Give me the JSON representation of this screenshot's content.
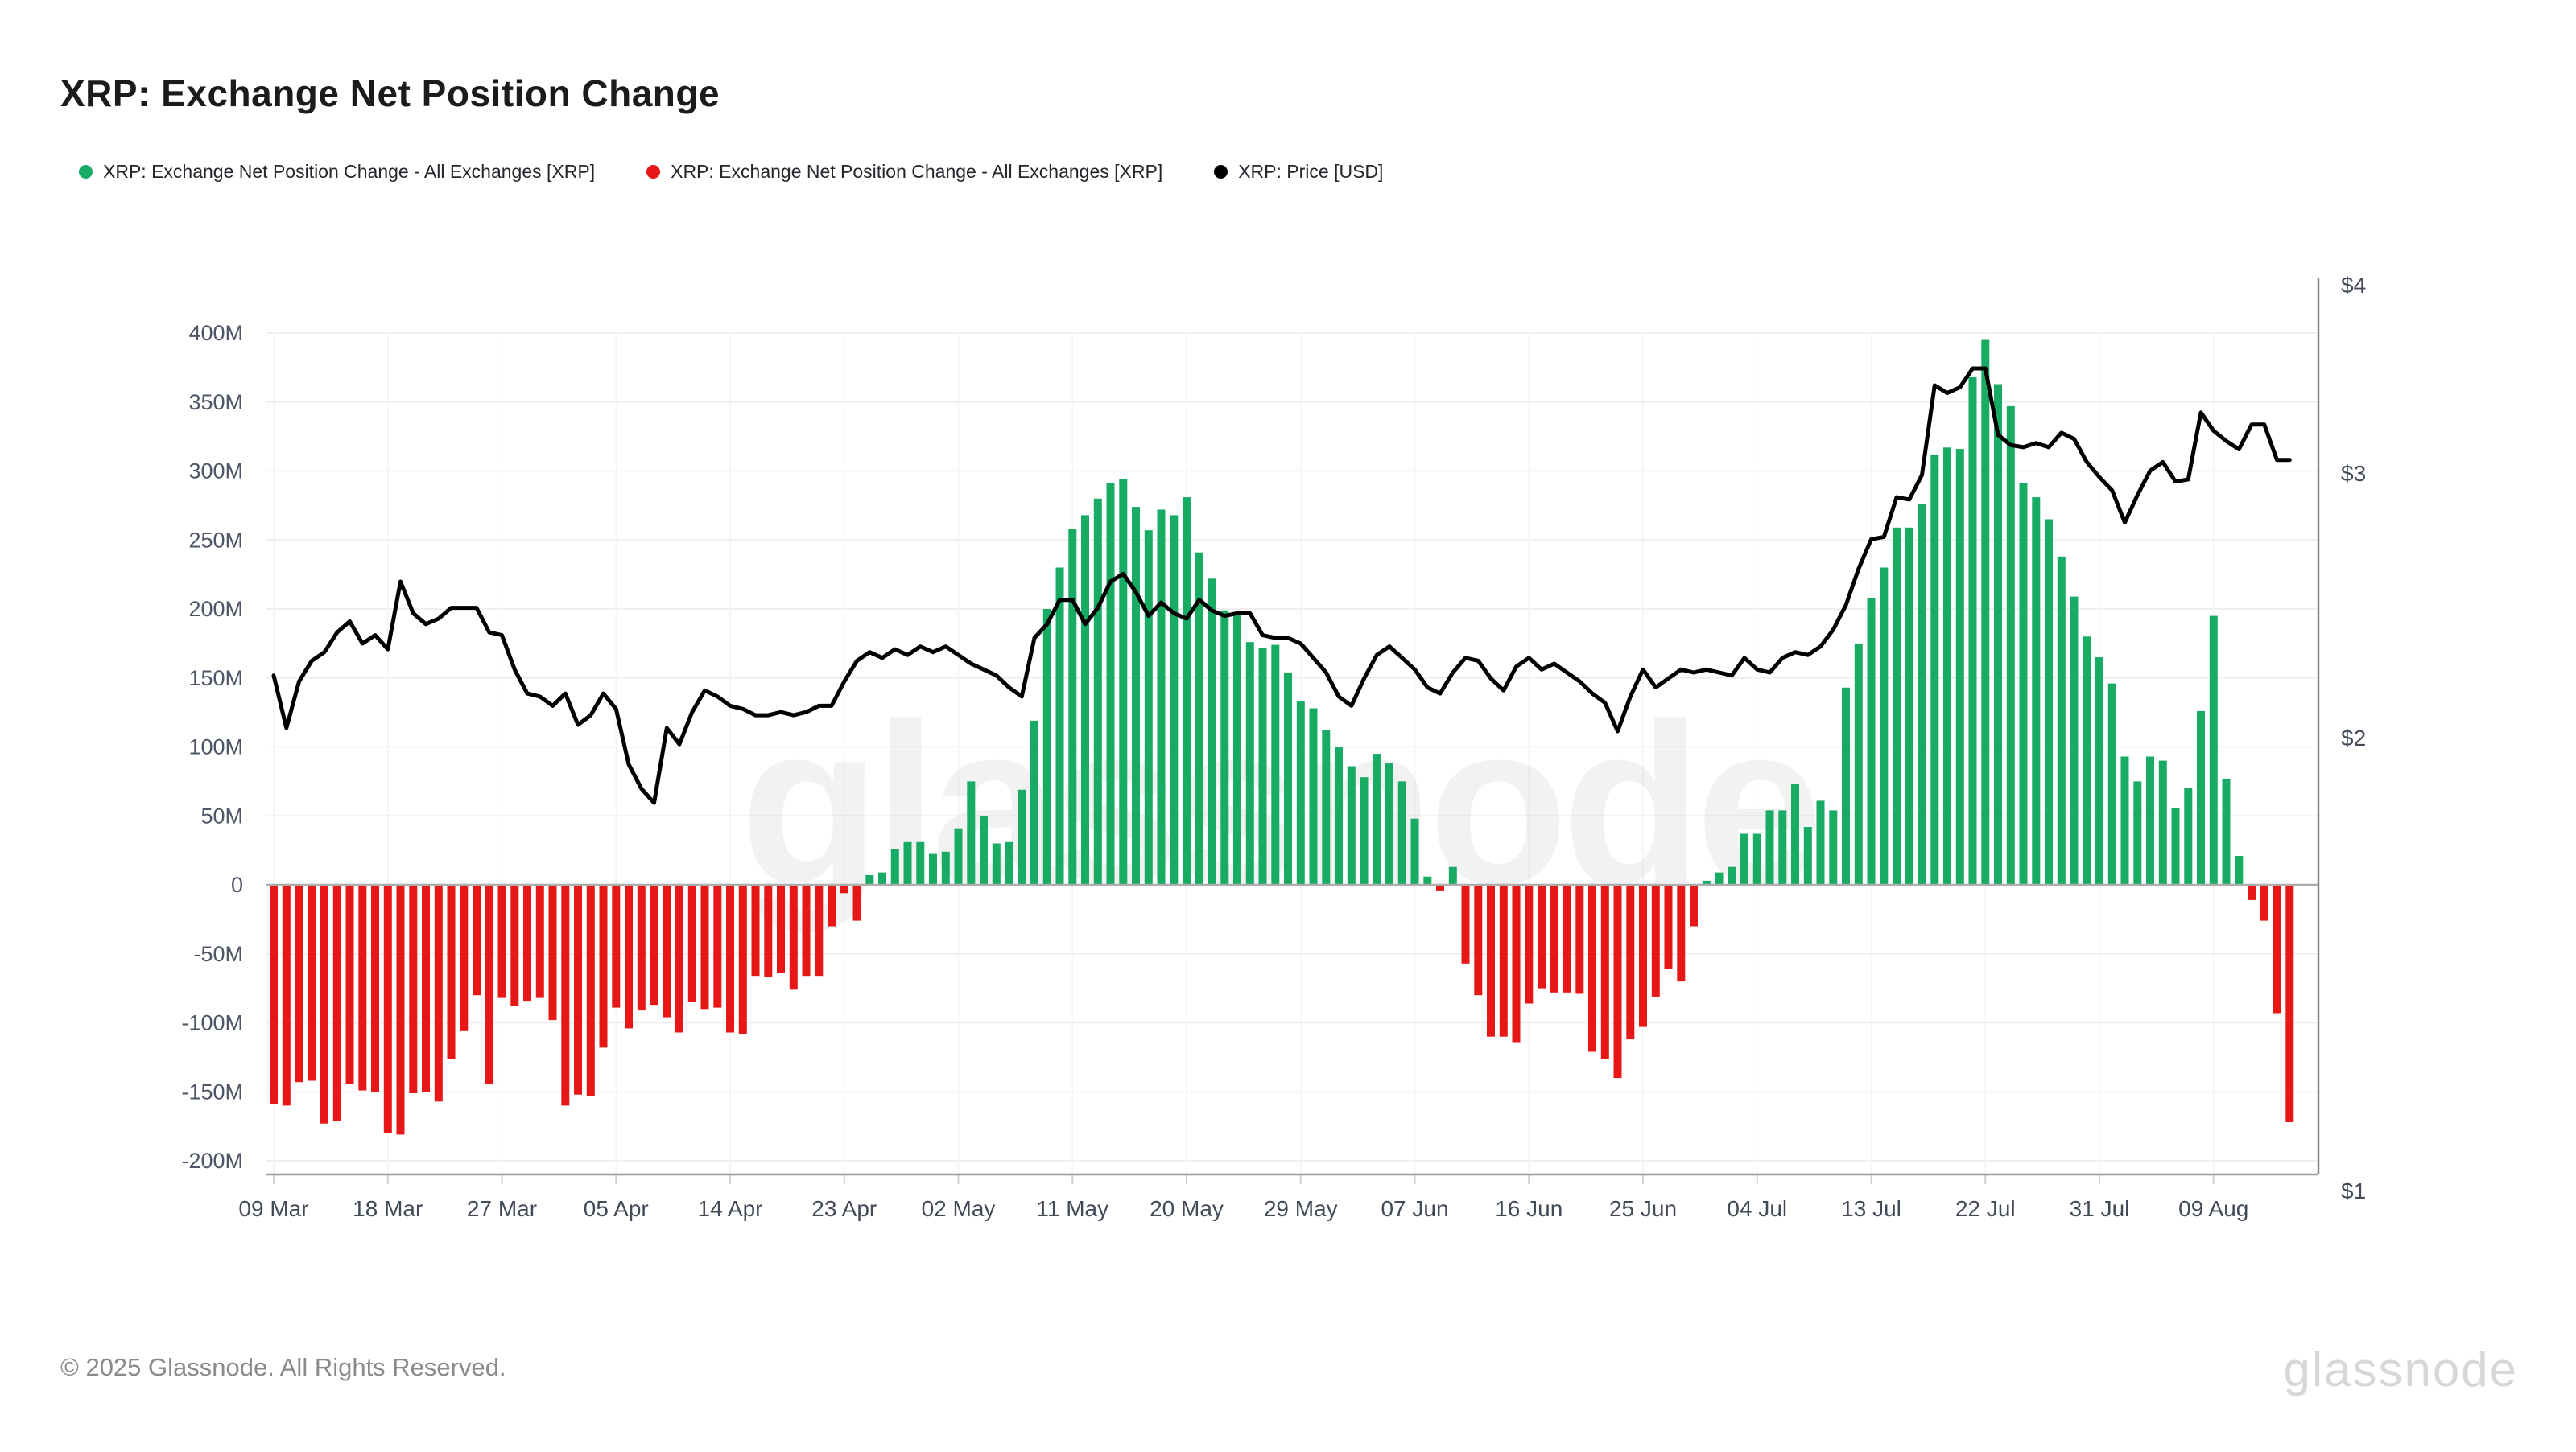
{
  "title": "XRP: Exchange Net Position Change",
  "legend": [
    {
      "label": "XRP: Exchange Net Position Change - All Exchanges [XRP]",
      "color": "#17ab64"
    },
    {
      "label": "XRP: Exchange Net Position Change - All Exchanges [XRP]",
      "color": "#e81717"
    },
    {
      "label": "XRP: Price [USD]",
      "color": "#000000"
    }
  ],
  "watermark": "glassnode",
  "footer": {
    "copyright": "© 2025 Glassnode. All Rights Reserved.",
    "logo": "glassnode"
  },
  "chart_data": {
    "type": "bar",
    "title": "XRP: Exchange Net Position Change",
    "bar_series_name": "XRP: Exchange Net Position Change - All Exchanges [XRP]",
    "line_series_name": "XRP: Price [USD]",
    "left_axis": {
      "unit": "XRP (millions)",
      "tick_labels": [
        "400M",
        "350M",
        "300M",
        "250M",
        "200M",
        "150M",
        "100M",
        "50M",
        "0",
        "-50M",
        "-100M",
        "-150M",
        "-200M"
      ],
      "tick_values": [
        400,
        350,
        300,
        250,
        200,
        150,
        100,
        50,
        0,
        -50,
        -100,
        -150,
        -200
      ],
      "range": [
        -200,
        400
      ],
      "grid": true
    },
    "right_axis": {
      "unit": "USD",
      "scale": "log",
      "tick_labels": [
        "$4",
        "$3",
        "$2",
        "$1"
      ],
      "tick_values": [
        4,
        3,
        2,
        1
      ],
      "range": [
        1,
        4
      ]
    },
    "x_ticks": [
      "09 Mar",
      "18 Mar",
      "27 Mar",
      "05 Apr",
      "14 Apr",
      "23 Apr",
      "02 May",
      "11 May",
      "20 May",
      "29 May",
      "07 Jun",
      "16 Jun",
      "25 Jun",
      "04 Jul",
      "13 Jul",
      "22 Jul",
      "31 Jul",
      "09 Aug"
    ],
    "x_tick_every_days": 9,
    "legend_position": "top-left",
    "colors": {
      "positive": "#17ab64",
      "negative": "#e81717",
      "price": "#000000"
    },
    "dates": [
      "09 Mar",
      "10 Mar",
      "11 Mar",
      "12 Mar",
      "13 Mar",
      "14 Mar",
      "15 Mar",
      "16 Mar",
      "17 Mar",
      "18 Mar",
      "19 Mar",
      "20 Mar",
      "21 Mar",
      "22 Mar",
      "23 Mar",
      "24 Mar",
      "25 Mar",
      "26 Mar",
      "27 Mar",
      "28 Mar",
      "29 Mar",
      "30 Mar",
      "31 Mar",
      "01 Apr",
      "02 Apr",
      "03 Apr",
      "04 Apr",
      "05 Apr",
      "06 Apr",
      "07 Apr",
      "08 Apr",
      "09 Apr",
      "10 Apr",
      "11 Apr",
      "12 Apr",
      "13 Apr",
      "14 Apr",
      "15 Apr",
      "16 Apr",
      "17 Apr",
      "18 Apr",
      "19 Apr",
      "20 Apr",
      "21 Apr",
      "22 Apr",
      "23 Apr",
      "24 Apr",
      "25 Apr",
      "26 Apr",
      "27 Apr",
      "28 Apr",
      "29 Apr",
      "30 Apr",
      "01 May",
      "02 May",
      "03 May",
      "04 May",
      "05 May",
      "06 May",
      "07 May",
      "08 May",
      "09 May",
      "10 May",
      "11 May",
      "12 May",
      "13 May",
      "14 May",
      "15 May",
      "16 May",
      "17 May",
      "18 May",
      "19 May",
      "20 May",
      "21 May",
      "22 May",
      "23 May",
      "24 May",
      "25 May",
      "26 May",
      "27 May",
      "28 May",
      "29 May",
      "30 May",
      "31 May",
      "01 Jun",
      "02 Jun",
      "03 Jun",
      "04 Jun",
      "05 Jun",
      "06 Jun",
      "07 Jun",
      "08 Jun",
      "09 Jun",
      "10 Jun",
      "11 Jun",
      "12 Jun",
      "13 Jun",
      "14 Jun",
      "15 Jun",
      "16 Jun",
      "17 Jun",
      "18 Jun",
      "19 Jun",
      "20 Jun",
      "21 Jun",
      "22 Jun",
      "23 Jun",
      "24 Jun",
      "25 Jun",
      "26 Jun",
      "27 Jun",
      "28 Jun",
      "29 Jun",
      "30 Jun",
      "01 Jul",
      "02 Jul",
      "03 Jul",
      "04 Jul",
      "05 Jul",
      "06 Jul",
      "07 Jul",
      "08 Jul",
      "09 Jul",
      "10 Jul",
      "11 Jul",
      "12 Jul",
      "13 Jul",
      "14 Jul",
      "15 Jul",
      "16 Jul",
      "17 Jul",
      "18 Jul",
      "19 Jul",
      "20 Jul",
      "21 Jul",
      "22 Jul",
      "23 Jul",
      "24 Jul",
      "25 Jul",
      "26 Jul",
      "27 Jul",
      "28 Jul",
      "29 Jul",
      "30 Jul",
      "31 Jul",
      "01 Aug",
      "02 Aug",
      "03 Aug",
      "04 Aug",
      "05 Aug",
      "06 Aug",
      "07 Aug",
      "08 Aug",
      "09 Aug",
      "10 Aug",
      "11 Aug",
      "12 Aug",
      "13 Aug",
      "14 Aug",
      "15 Aug"
    ],
    "npc_millions": [
      -159,
      -160,
      -143,
      -142,
      -173,
      -171,
      -144,
      -149,
      -150,
      -180,
      -181,
      -151,
      -150,
      -157,
      -126,
      -106,
      -80,
      -144,
      -82,
      -88,
      -84,
      -82,
      -98,
      -160,
      -152,
      -153,
      -118,
      -89,
      -104,
      -91,
      -87,
      -96,
      -107,
      -85,
      -90,
      -89,
      -107,
      -108,
      -66,
      -67,
      -64,
      -76,
      -66,
      -66,
      -30,
      -6,
      -26,
      7,
      9,
      26,
      31,
      31,
      23,
      24,
      41,
      75,
      50,
      30,
      31,
      69,
      119,
      200,
      230,
      258,
      268,
      280,
      291,
      294,
      274,
      257,
      272,
      268,
      281,
      241,
      222,
      199,
      196,
      176,
      172,
      174,
      154,
      133,
      128,
      112,
      100,
      86,
      78,
      95,
      88,
      75,
      48,
      6,
      -4,
      13,
      -57,
      -80,
      -110,
      -110,
      -114,
      -86,
      -75,
      -78,
      -78,
      -79,
      -121,
      -126,
      -140,
      -112,
      -103,
      -81,
      -61,
      -70,
      -30,
      3,
      9,
      13,
      37,
      37,
      54,
      54,
      73,
      42,
      61,
      54,
      143,
      175,
      208,
      230,
      259,
      259,
      276,
      312,
      317,
      316,
      368,
      395,
      363,
      347,
      291,
      281,
      265,
      238,
      209,
      180,
      165,
      146,
      93,
      75,
      93,
      90,
      56,
      70,
      126,
      195,
      77,
      21,
      -11,
      -26,
      -93,
      -172
    ],
    "price_usd": [
      2.2,
      2.03,
      2.18,
      2.25,
      2.28,
      2.35,
      2.39,
      2.31,
      2.34,
      2.29,
      2.54,
      2.42,
      2.38,
      2.4,
      2.44,
      2.44,
      2.44,
      2.35,
      2.34,
      2.22,
      2.14,
      2.13,
      2.1,
      2.14,
      2.04,
      2.07,
      2.14,
      2.09,
      1.92,
      1.85,
      1.81,
      2.03,
      1.98,
      2.08,
      2.15,
      2.13,
      2.1,
      2.09,
      2.07,
      2.07,
      2.08,
      2.07,
      2.08,
      2.1,
      2.1,
      2.18,
      2.25,
      2.28,
      2.26,
      2.29,
      2.27,
      2.3,
      2.28,
      2.3,
      2.27,
      2.24,
      2.22,
      2.2,
      2.16,
      2.13,
      2.33,
      2.38,
      2.47,
      2.47,
      2.38,
      2.44,
      2.54,
      2.57,
      2.5,
      2.41,
      2.46,
      2.42,
      2.4,
      2.47,
      2.43,
      2.41,
      2.42,
      2.42,
      2.34,
      2.33,
      2.33,
      2.31,
      2.26,
      2.21,
      2.13,
      2.1,
      2.19,
      2.27,
      2.3,
      2.26,
      2.22,
      2.16,
      2.14,
      2.21,
      2.26,
      2.25,
      2.19,
      2.15,
      2.23,
      2.26,
      2.22,
      2.24,
      2.21,
      2.18,
      2.14,
      2.11,
      2.02,
      2.13,
      2.22,
      2.16,
      2.19,
      2.22,
      2.21,
      2.22,
      2.21,
      2.2,
      2.26,
      2.22,
      2.21,
      2.26,
      2.28,
      2.27,
      2.3,
      2.36,
      2.45,
      2.59,
      2.71,
      2.72,
      2.89,
      2.88,
      2.99,
      3.43,
      3.39,
      3.42,
      3.52,
      3.52,
      3.18,
      3.13,
      3.12,
      3.14,
      3.12,
      3.19,
      3.16,
      3.05,
      2.98,
      2.92,
      2.78,
      2.9,
      3.01,
      3.05,
      2.96,
      2.97,
      3.29,
      3.2,
      3.15,
      3.11,
      3.23,
      3.23,
      3.06,
      3.06
    ]
  }
}
